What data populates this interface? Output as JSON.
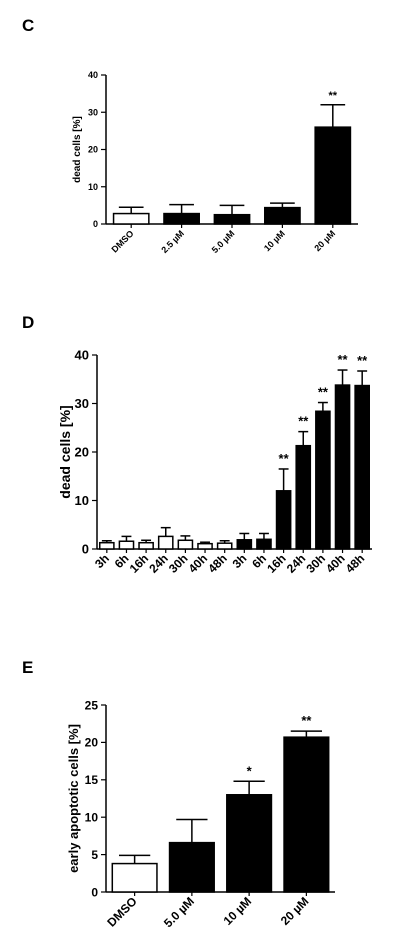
{
  "chart_data": [
    {
      "panel": "C",
      "type": "bar",
      "ylabel": "dead cells [%]",
      "ylim": [
        0,
        40
      ],
      "yticks": [
        0,
        10,
        20,
        30,
        40
      ],
      "categories": [
        "DMSO",
        "2.5 µM",
        "5.0 µM",
        "10 µM",
        "20 µM"
      ],
      "values": [
        2.8,
        2.8,
        2.5,
        4.4,
        26.0
      ],
      "errors": [
        1.7,
        2.4,
        2.5,
        1.2,
        6.0
      ],
      "fill": [
        "white",
        "black",
        "black",
        "black",
        "black"
      ],
      "annotations": [
        "",
        "",
        "",
        "",
        "**"
      ]
    },
    {
      "panel": "D",
      "type": "bar",
      "ylabel": "dead cells [%]",
      "ylim": [
        0,
        40
      ],
      "yticks": [
        0,
        10,
        20,
        30,
        40
      ],
      "categories": [
        "3h",
        "6h",
        "16h",
        "24h",
        "30h",
        "40h",
        "48h",
        "3h",
        "6h",
        "16h",
        "24h",
        "30h",
        "40h",
        "48h"
      ],
      "values": [
        1.3,
        1.6,
        1.3,
        2.6,
        1.8,
        1.1,
        1.2,
        1.9,
        2.0,
        12.0,
        21.3,
        28.4,
        33.8,
        33.7
      ],
      "errors": [
        0.4,
        1.0,
        0.5,
        1.8,
        0.9,
        0.3,
        0.5,
        1.3,
        1.2,
        4.5,
        2.9,
        1.8,
        3.1,
        3.0
      ],
      "fill": [
        "white",
        "white",
        "white",
        "white",
        "white",
        "white",
        "white",
        "black",
        "black",
        "black",
        "black",
        "black",
        "black",
        "black"
      ],
      "annotations": [
        "",
        "",
        "",
        "",
        "",
        "",
        "",
        "",
        "",
        "**",
        "**",
        "**",
        "**",
        "**"
      ]
    },
    {
      "panel": "E",
      "type": "bar",
      "ylabel": "early apoptotic cells [%]",
      "ylim": [
        0,
        25
      ],
      "yticks": [
        0,
        5,
        10,
        15,
        20,
        25
      ],
      "categories": [
        "DMSO",
        "5.0 µM",
        "10 µM",
        "20 µM"
      ],
      "values": [
        3.8,
        6.6,
        13.0,
        20.7
      ],
      "errors": [
        1.1,
        3.1,
        1.8,
        0.8
      ],
      "fill": [
        "white",
        "black",
        "black",
        "black"
      ],
      "annotations": [
        "",
        "",
        "*",
        "**"
      ]
    }
  ]
}
